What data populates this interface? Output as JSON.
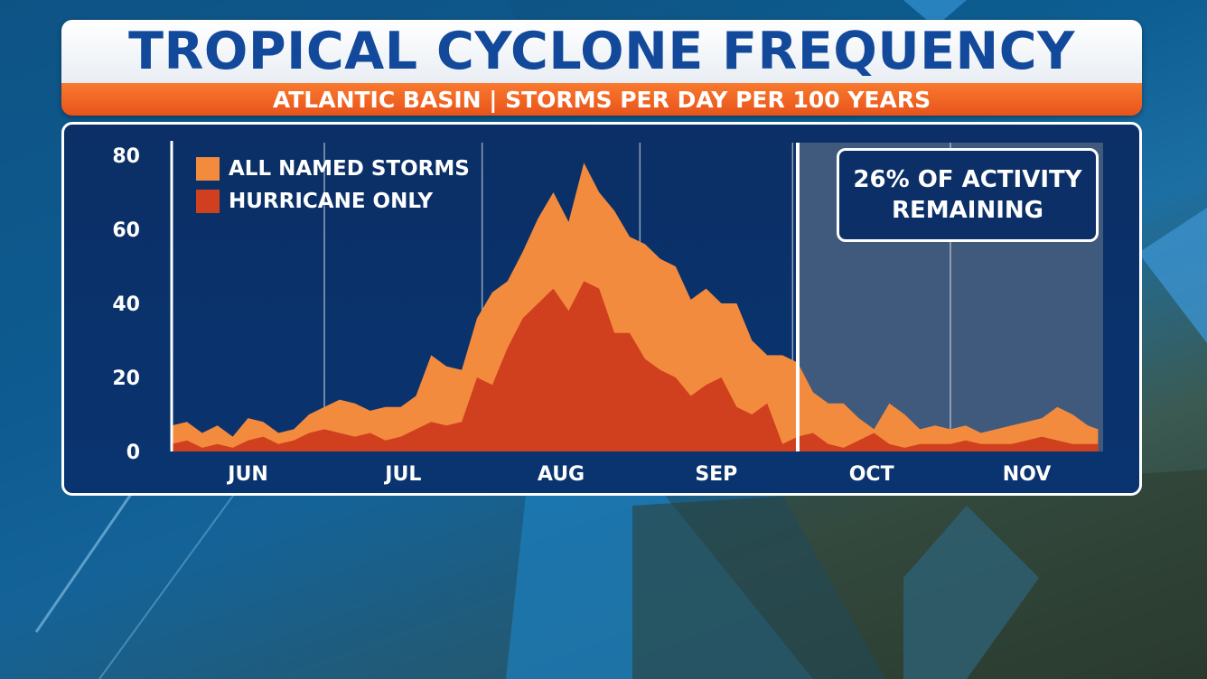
{
  "title": "TROPICAL CYCLONE FREQUENCY",
  "subtitle": "ATLANTIC BASIN | STORMS PER DAY PER 100 YEARS",
  "callout": "26% OF ACTIVITY REMAINING",
  "colors": {
    "all_named": "#f38b3f",
    "hurricane": "#d0401f",
    "panel": "#0b2f66",
    "remaining_shade": "#4a6281",
    "title": "#12499a",
    "banner": "#f26a26"
  },
  "chart_data": {
    "type": "area",
    "title": "TROPICAL CYCLONE FREQUENCY",
    "subtitle": "ATLANTIC BASIN | STORMS PER DAY PER 100 YEARS",
    "x_unit": "day of season (Jun 1 = 0)",
    "ylim": [
      0,
      80
    ],
    "yticks": [
      "80",
      "60",
      "40",
      "20",
      "0"
    ],
    "ytick_values": [
      80,
      60,
      40,
      20,
      0
    ],
    "months": [
      "JUN",
      "JUL",
      "AUG",
      "SEP",
      "OCT",
      "NOV"
    ],
    "month_boundaries": [
      0,
      30,
      61,
      92,
      122,
      153,
      183
    ],
    "current_day": 123,
    "remaining_share": "26% OF ACTIVITY REMAINING",
    "grid": "vertical lines at month boundaries",
    "legend_position": "top-left",
    "series": [
      {
        "name": "ALL NAMED STORMS",
        "color": "#f38b3f",
        "x": [
          0,
          3,
          6,
          9,
          12,
          15,
          18,
          21,
          24,
          27,
          30,
          33,
          36,
          39,
          42,
          45,
          48,
          51,
          54,
          57,
          60,
          63,
          66,
          69,
          72,
          75,
          78,
          81,
          84,
          87,
          90,
          93,
          96,
          99,
          102,
          105,
          108,
          111,
          114,
          117,
          120,
          123,
          126,
          129,
          132,
          135,
          138,
          141,
          144,
          147,
          150,
          153,
          156,
          159,
          162,
          165,
          168,
          171,
          174,
          177,
          180,
          182
        ],
        "y": [
          7,
          8,
          5,
          7,
          4,
          9,
          8,
          5,
          6,
          10,
          12,
          14,
          13,
          11,
          12,
          12,
          15,
          26,
          23,
          22,
          36,
          43,
          46,
          54,
          63,
          70,
          62,
          78,
          70,
          65,
          58,
          56,
          52,
          50,
          41,
          44,
          40,
          40,
          30,
          26,
          26,
          24,
          16,
          13,
          13,
          9,
          6,
          13,
          10,
          6,
          7,
          6,
          7,
          5,
          6,
          7,
          8,
          9,
          12,
          10,
          7,
          6
        ]
      },
      {
        "name": "HURRICANE ONLY",
        "color": "#d0401f",
        "x": [
          0,
          3,
          6,
          9,
          12,
          15,
          18,
          21,
          24,
          27,
          30,
          33,
          36,
          39,
          42,
          45,
          48,
          51,
          54,
          57,
          60,
          63,
          66,
          69,
          72,
          75,
          78,
          81,
          84,
          87,
          90,
          93,
          96,
          99,
          102,
          105,
          108,
          111,
          114,
          117,
          120,
          123,
          126,
          129,
          132,
          135,
          138,
          141,
          144,
          147,
          150,
          153,
          156,
          159,
          162,
          165,
          168,
          171,
          174,
          177,
          180,
          182
        ],
        "y": [
          2,
          3,
          1,
          2,
          1,
          3,
          4,
          2,
          3,
          5,
          6,
          5,
          4,
          5,
          3,
          4,
          6,
          8,
          7,
          8,
          20,
          18,
          28,
          36,
          40,
          44,
          38,
          46,
          44,
          32,
          32,
          25,
          22,
          20,
          15,
          18,
          20,
          12,
          10,
          13,
          2,
          4,
          5,
          2,
          1,
          3,
          5,
          2,
          1,
          2,
          2,
          2,
          3,
          2,
          2,
          2,
          3,
          4,
          3,
          2,
          2,
          2
        ]
      }
    ]
  }
}
